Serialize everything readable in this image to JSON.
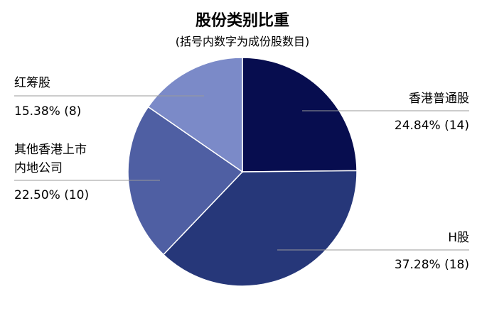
{
  "chart_data": {
    "type": "pie",
    "title": "股份类别比重",
    "subtitle": "(括号内数字为成份股数目)",
    "slices": [
      {
        "name": "香港普通股",
        "percent": 24.84,
        "percent_label": "24.84% (14)",
        "count": 14,
        "color": "#070d4f"
      },
      {
        "name": "H股",
        "percent": 37.28,
        "percent_label": "37.28% (18)",
        "count": 18,
        "color": "#263779"
      },
      {
        "name": "其他香港上市内地公司",
        "name_lines": [
          "其他香港上市",
          "内地公司"
        ],
        "percent": 22.5,
        "percent_label": "22.50% (10)",
        "count": 10,
        "color": "#4f5fa3"
      },
      {
        "name": "红筹股",
        "percent": 15.38,
        "percent_label": "15.38% (8)",
        "count": 8,
        "color": "#7b8ac8"
      }
    ],
    "start_angle": "12 o'clock",
    "direction": "clockwise",
    "legend": "none",
    "labels": "outside with leader lines"
  }
}
